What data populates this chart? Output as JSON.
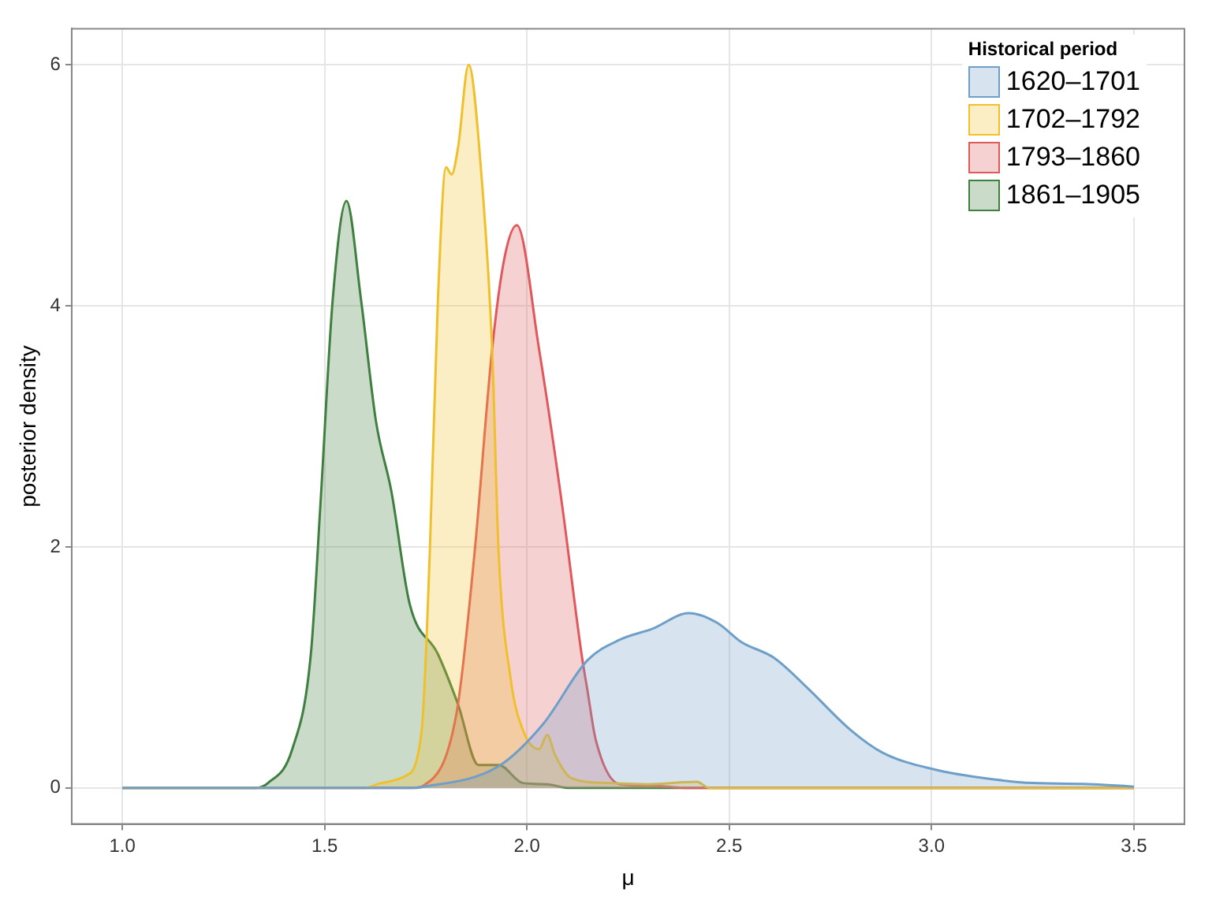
{
  "chart_data": {
    "type": "area",
    "xlabel": "μ",
    "ylabel": "posterior density",
    "legend_title": "Historical period",
    "legend": "top right",
    "grid": true,
    "xlim": [
      0.875,
      3.625
    ],
    "xticks": [
      {
        "value": 1,
        "label": "1.0"
      },
      {
        "value": 1.5,
        "label": "1.5"
      },
      {
        "value": 2,
        "label": "2.0"
      },
      {
        "value": 2.5,
        "label": "2.5"
      },
      {
        "value": 3,
        "label": "3.0"
      },
      {
        "value": 3.5,
        "label": "3.5"
      }
    ],
    "ylim": [
      -0.3,
      6.3
    ],
    "yticks": [
      0,
      2,
      4,
      6
    ],
    "series": [
      {
        "name": "1620–1701",
        "color": "#6e9fc8",
        "x": [
          1,
          1.7,
          1.745,
          1.93,
          2.04,
          2.15,
          2.23,
          2.31,
          2.4,
          2.47,
          2.53,
          2.61,
          2.69,
          2.8,
          2.88,
          3.01,
          3.11,
          3.25,
          3.4,
          3.5
        ],
        "values": [
          0,
          0,
          0.01,
          0.18,
          0.53,
          1.06,
          1.23,
          1.32,
          1.45,
          1.37,
          1.21,
          1.08,
          0.84,
          0.48,
          0.29,
          0.15,
          0.09,
          0.04,
          0.03,
          0.01
        ]
      },
      {
        "name": "1702–1792",
        "color": "#f0c02c",
        "x": [
          1,
          1.6,
          1.64,
          1.7,
          1.74,
          1.76,
          1.78,
          1.8,
          1.814,
          1.83,
          1.856,
          1.887,
          1.914,
          1.93,
          1.96,
          1.99,
          2.03,
          2.05,
          2.07,
          2.11,
          2.2,
          2.3,
          2.42,
          2.45,
          3.5
        ],
        "values": [
          0,
          0,
          0.04,
          0.1,
          0.48,
          1.96,
          4.05,
          5.15,
          5.09,
          5.32,
          6.0,
          5.11,
          3.64,
          1.96,
          0.9,
          0.48,
          0.32,
          0.44,
          0.27,
          0.08,
          0.04,
          0.03,
          0.05,
          0,
          0
        ]
      },
      {
        "name": "1793–1860",
        "color": "#e0585c",
        "x": [
          1,
          1.72,
          1.745,
          1.826,
          1.87,
          1.914,
          1.944,
          1.975,
          2.03,
          2.086,
          2.135,
          2.15,
          2.17,
          2.23,
          2.3,
          2.4,
          3.5
        ],
        "values": [
          0,
          0,
          0.02,
          0.62,
          1.93,
          3.64,
          4.39,
          4.67,
          3.64,
          2.37,
          1.11,
          0.8,
          0.4,
          0.03,
          0.02,
          0,
          0
        ]
      },
      {
        "name": "1861–1905",
        "color": "#3f7f3f",
        "x": [
          1,
          1.33,
          1.36,
          1.42,
          1.466,
          1.49,
          1.52,
          1.554,
          1.59,
          1.627,
          1.665,
          1.71,
          1.78,
          1.83,
          1.88,
          1.93,
          1.99,
          2.05,
          2.1,
          3.5
        ],
        "values": [
          0,
          0,
          0.04,
          0.32,
          1.11,
          2.37,
          4.05,
          4.87,
          4.05,
          3.04,
          2.46,
          1.53,
          1.11,
          0.69,
          0.19,
          0.19,
          0.04,
          0.03,
          0,
          0
        ]
      }
    ]
  }
}
